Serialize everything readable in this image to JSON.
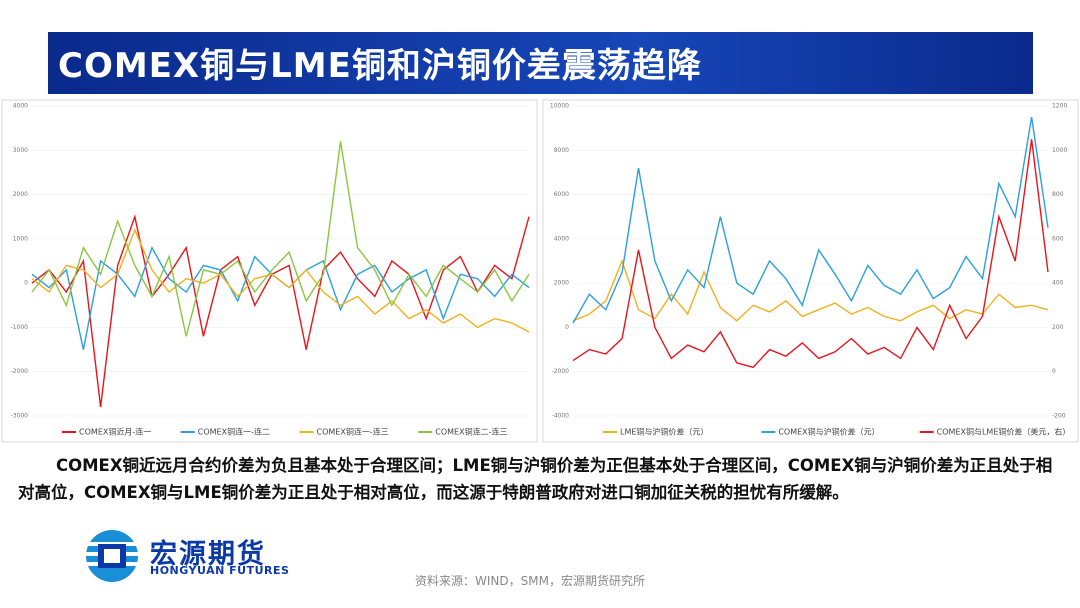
{
  "slide": {
    "title": "COMEX铜与LME铜和沪铜价差震荡趋降",
    "body": "COMEX铜近远月合约价差为负且基本处于合理区间；LME铜与沪铜价差为正但基本处于合理区间，COMEX铜与沪铜价差为正且处于相对高位，COMEX铜与LME铜价差为正且处于相对高位，而这源于特朗普政府对进口铜加征关税的担忧有所缓解。",
    "logo_cn": "宏源期货",
    "logo_en": "HONGYUAN FUTURES",
    "source": "资料来源：WIND，SMM，宏源期货研究所"
  },
  "chart_data": [
    {
      "type": "line",
      "categories": [
        null,
        null,
        null,
        null,
        null,
        null,
        null,
        null,
        null,
        null,
        null,
        null,
        null,
        null,
        null,
        null,
        null,
        null,
        null,
        null,
        null,
        null,
        null,
        null,
        null,
        null,
        null,
        null,
        null,
        null
      ],
      "ylim": [
        -3000,
        4000
      ],
      "yticks": [
        -3000,
        -2000,
        -1000,
        0,
        1000,
        2000,
        3000,
        4000
      ],
      "series": [
        {
          "name": "COMEX铜近月-连一",
          "color": "#e8141b",
          "values": [
            0,
            300,
            -200,
            500,
            -2800,
            400,
            1500,
            -300,
            200,
            800,
            -1200,
            300,
            600,
            -500,
            200,
            400,
            -1500,
            300,
            700,
            100,
            -300,
            500,
            200,
            -800,
            300,
            600,
            -200,
            400,
            100,
            1500
          ]
        },
        {
          "name": "COMEX铜连一-连二",
          "color": "#2aa0e0",
          "values": [
            200,
            -100,
            300,
            -1500,
            500,
            200,
            -300,
            800,
            100,
            -200,
            400,
            300,
            -400,
            600,
            200,
            -100,
            300,
            500,
            -600,
            200,
            400,
            -200,
            100,
            300,
            -800,
            200,
            100,
            -300,
            200,
            -100
          ]
        },
        {
          "name": "COMEX铜连一-连三",
          "color": "#f2b01e",
          "values": [
            100,
            -200,
            400,
            300,
            -100,
            200,
            1200,
            300,
            -200,
            100,
            0,
            200,
            -300,
            100,
            200,
            -100,
            300,
            -200,
            -500,
            -300,
            -700,
            -400,
            -800,
            -600,
            -900,
            -700,
            -1000,
            -800,
            -900,
            -1100
          ]
        },
        {
          "name": "COMEX铜连二-连三",
          "color": "#8cc63f",
          "values": [
            -200,
            300,
            -500,
            800,
            200,
            1400,
            400,
            -300,
            600,
            -1200,
            300,
            200,
            500,
            -200,
            300,
            700,
            -400,
            200,
            3200,
            800,
            300,
            -500,
            200,
            -300,
            400,
            100,
            -200,
            300,
            -400,
            200
          ]
        }
      ]
    },
    {
      "type": "line",
      "categories": [
        null,
        null,
        null,
        null,
        null,
        null,
        null,
        null,
        null,
        null,
        null,
        null,
        null,
        null,
        null,
        null,
        null,
        null,
        null,
        null,
        null,
        null,
        null,
        null,
        null,
        null,
        null,
        null,
        null,
        null
      ],
      "ylim": [
        -4000,
        10000
      ],
      "yticks": [
        -4000,
        -2000,
        0,
        2000,
        4000,
        6000,
        8000,
        10000
      ],
      "y2lim": [
        -200,
        1200
      ],
      "y2ticks": [
        -200,
        0,
        200,
        400,
        600,
        800,
        1000,
        1200
      ],
      "series": [
        {
          "name": "LME铜与沪铜价差（元）",
          "color": "#f2b01e",
          "values": [
            300,
            600,
            1200,
            3000,
            800,
            400,
            1500,
            600,
            2500,
            900,
            300,
            1000,
            700,
            1200,
            500,
            800,
            1100,
            600,
            900,
            500,
            300,
            700,
            1000,
            400,
            800,
            600,
            1500,
            900,
            1000,
            800
          ]
        },
        {
          "name": "COMEX铜与沪铜价差（元）",
          "color": "#2aa0e0",
          "values": [
            200,
            1500,
            800,
            2500,
            7200,
            3000,
            1200,
            2600,
            1800,
            5000,
            2000,
            1500,
            3000,
            2200,
            1000,
            3500,
            2400,
            1200,
            2800,
            1900,
            1500,
            2600,
            1300,
            1800,
            3200,
            2200,
            6500,
            5000,
            9500,
            4500
          ]
        },
        {
          "name": "COMEX铜与LME铜价差（美元，右）",
          "color": "#e8141b",
          "axis": "y2",
          "values": [
            50,
            100,
            80,
            150,
            550,
            200,
            60,
            120,
            90,
            180,
            40,
            20,
            100,
            70,
            130,
            60,
            90,
            150,
            80,
            110,
            60,
            200,
            100,
            300,
            150,
            250,
            700,
            500,
            1050,
            450
          ]
        }
      ]
    }
  ]
}
